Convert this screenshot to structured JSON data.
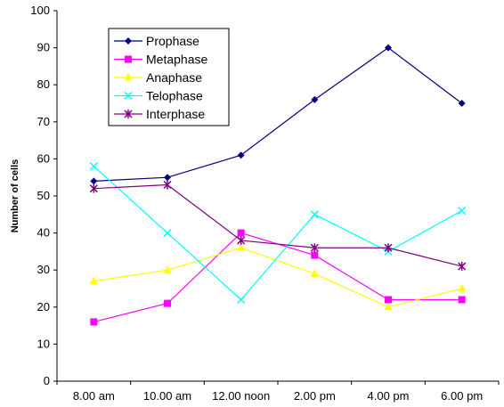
{
  "chart_data": {
    "type": "line",
    "title": "",
    "xlabel": "",
    "ylabel": "Number of cells",
    "ylim": [
      0,
      100
    ],
    "ytick_step": 10,
    "grid": false,
    "legend_placement": "top-left",
    "categories": [
      "8.00 am",
      "10.00 am",
      "12.00 noon",
      "2.00 pm",
      "4.00 pm",
      "6.00 pm"
    ],
    "series": [
      {
        "name": "Prophase",
        "color": "#000080",
        "marker": "diamond",
        "values": [
          54,
          55,
          61,
          76,
          90,
          75
        ]
      },
      {
        "name": "Metaphase",
        "color": "#FF00FF",
        "marker": "square",
        "values": [
          16,
          21,
          40,
          34,
          22,
          22
        ]
      },
      {
        "name": "Anaphase",
        "color": "#FFFF00",
        "marker": "triangle",
        "values": [
          27,
          30,
          36,
          29,
          20,
          25
        ]
      },
      {
        "name": "Telophase",
        "color": "#00FFFF",
        "marker": "x",
        "values": [
          58,
          40,
          22,
          45,
          35,
          46
        ]
      },
      {
        "name": "Interphase",
        "color": "#800080",
        "marker": "star",
        "values": [
          52,
          53,
          38,
          36,
          36,
          31
        ]
      }
    ]
  }
}
